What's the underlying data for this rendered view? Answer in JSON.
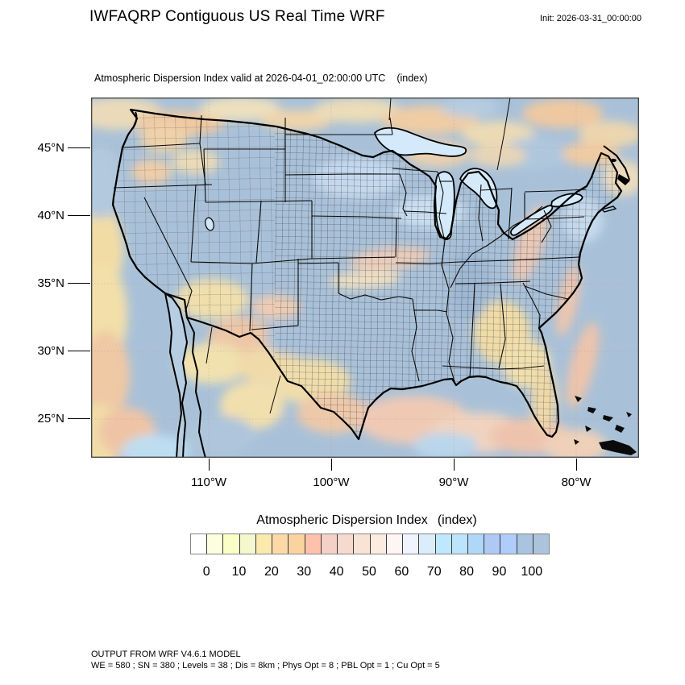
{
  "header": {
    "title": "IWFAQRP Contiguous US Real Time WRF",
    "init_label": "Init: 2026-03-31_00:00:00"
  },
  "map": {
    "subtitle": "Atmospheric Dispersion Index valid at 2026-04-01_02:00:00 UTC",
    "subtitle_units": "(index)",
    "y_axis": {
      "ticks": [
        "45°N",
        "40°N",
        "35°N",
        "30°N",
        "25°N"
      ]
    },
    "x_axis": {
      "ticks": [
        "110°W",
        "100°W",
        "90°W",
        "80°W"
      ]
    }
  },
  "colorbar": {
    "title": "Atmospheric Dispersion Index",
    "units": "(index)",
    "tick_labels": [
      "0",
      "10",
      "20",
      "30",
      "40",
      "50",
      "60",
      "70",
      "80",
      "90",
      "100"
    ],
    "cell_colors": [
      "#ffffff",
      "#fbffdf",
      "#fbffc6",
      "#f4f9cd",
      "#fce9ae",
      "#fbdaa8",
      "#fbd3a0",
      "#fec2ac",
      "#f4d0c5",
      "#f7dace",
      "#f9e3d5",
      "#fdebdf",
      "#fff5f2",
      "#f0f5fd",
      "#dbedfb",
      "#bee8fe",
      "#bce4fd",
      "#afd7f8",
      "#adc9f4",
      "#b0ccfa",
      "#a9c3e1",
      "#abc3db"
    ]
  },
  "footer": {
    "line1": "OUTPUT FROM WRF V4.6.1 MODEL",
    "line2": "WE = 580 ; SN = 380 ; Levels = 38 ; Dis = 8km ; Phys Opt = 8 ; PBL Opt = 1 ; Cu Opt = 5"
  }
}
